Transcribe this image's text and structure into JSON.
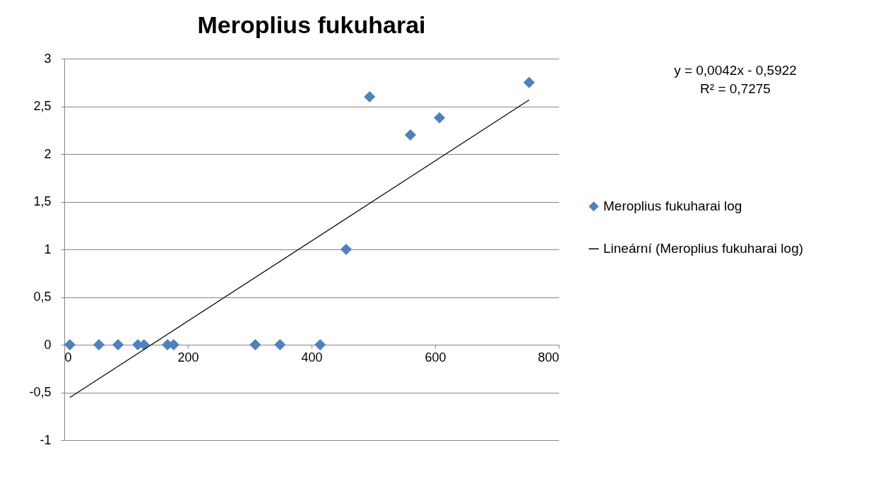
{
  "chart_data": {
    "type": "scatter",
    "title": "Meroplius fukuharai",
    "series": [
      {
        "name": "Meroplius fukuharai log",
        "marker": "diamond",
        "color": "#4f81bd",
        "x": [
          9,
          56,
          87,
          119,
          129,
          167,
          177,
          309,
          349,
          414,
          456,
          494,
          560,
          607,
          752
        ],
        "values": [
          0,
          0,
          0,
          0,
          0,
          0,
          0,
          0,
          0,
          0,
          1,
          2.6,
          2.2,
          2.38,
          2.75
        ]
      },
      {
        "name": "Lineární (Meroplius fukuharai log)",
        "type": "line",
        "line_style": "solid",
        "color": "#000000",
        "x": [
          9,
          752
        ],
        "values": [
          -0.554,
          2.566
        ]
      }
    ],
    "xlim": [
      0,
      800
    ],
    "xticks": [
      0,
      200,
      400,
      600,
      800
    ],
    "ylim": [
      -1,
      3
    ],
    "yticks": [
      -1,
      {
        "value": -0.5,
        "label": "-0,5"
      },
      0,
      {
        "value": 0.5,
        "label": "0,5"
      },
      1,
      {
        "value": 1.5,
        "label": "1,5"
      },
      2,
      {
        "value": 2.5,
        "label": "2,5"
      },
      3
    ],
    "grid": "y",
    "legend": "right",
    "annotations": [
      "y = 0,0042x - 0,5922",
      "R² = 0,7275"
    ]
  }
}
